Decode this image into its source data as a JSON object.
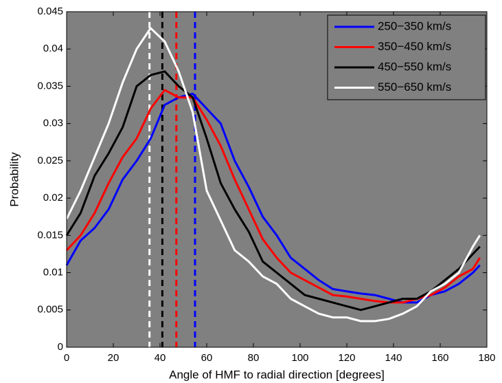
{
  "chart_data": {
    "type": "line",
    "x_label": "Angle of HMF to radial direction [degrees]",
    "y_label": "Probability",
    "x": [
      0,
      6,
      12,
      18,
      24,
      30,
      36,
      42,
      48,
      54,
      60,
      66,
      72,
      78,
      84,
      90,
      96,
      102,
      108,
      114,
      120,
      126,
      132,
      138,
      144,
      150,
      156,
      162,
      168,
      174,
      177
    ],
    "series": [
      {
        "name": "250−350 km/s",
        "color": "#0000ff",
        "vline": 55,
        "values": [
          0.011,
          0.0143,
          0.016,
          0.0185,
          0.0225,
          0.025,
          0.028,
          0.0325,
          0.0335,
          0.034,
          0.032,
          0.03,
          0.025,
          0.0215,
          0.0175,
          0.015,
          0.012,
          0.0105,
          0.009,
          0.0078,
          0.0075,
          0.0072,
          0.007,
          0.0065,
          0.006,
          0.006,
          0.007,
          0.0075,
          0.0085,
          0.01,
          0.011
        ]
      },
      {
        "name": "350−450 km/s",
        "color": "#ff0000",
        "vline": 47,
        "values": [
          0.013,
          0.015,
          0.018,
          0.022,
          0.0255,
          0.028,
          0.032,
          0.0345,
          0.0335,
          0.0335,
          0.0305,
          0.027,
          0.0225,
          0.0185,
          0.0145,
          0.012,
          0.01,
          0.009,
          0.008,
          0.007,
          0.0068,
          0.0065,
          0.0062,
          0.006,
          0.006,
          0.0065,
          0.007,
          0.008,
          0.0095,
          0.0105,
          0.012
        ]
      },
      {
        "name": "450−550 km/s",
        "color": "#000000",
        "vline": 41,
        "values": [
          0.015,
          0.018,
          0.023,
          0.026,
          0.0295,
          0.035,
          0.0365,
          0.037,
          0.035,
          0.0335,
          0.028,
          0.022,
          0.0185,
          0.0155,
          0.0115,
          0.01,
          0.0085,
          0.007,
          0.0065,
          0.006,
          0.0055,
          0.005,
          0.0055,
          0.006,
          0.0065,
          0.0065,
          0.0075,
          0.009,
          0.0105,
          0.0125,
          0.0135
        ]
      },
      {
        "name": "550−650 km/s",
        "color": "#ffffff",
        "vline": 35.5,
        "values": [
          0.0172,
          0.021,
          0.0255,
          0.03,
          0.0355,
          0.04,
          0.0428,
          0.041,
          0.037,
          0.0315,
          0.021,
          0.017,
          0.013,
          0.0115,
          0.0095,
          0.0085,
          0.0065,
          0.0055,
          0.0045,
          0.004,
          0.004,
          0.0035,
          0.0035,
          0.0038,
          0.0045,
          0.0055,
          0.0075,
          0.0085,
          0.01,
          0.0135,
          0.015
        ]
      }
    ],
    "xlim": [
      0,
      180
    ],
    "xticks": [
      0,
      20,
      40,
      60,
      80,
      100,
      120,
      140,
      160,
      180
    ],
    "ylim": [
      0,
      0.045
    ],
    "yticks": [
      0,
      0.005,
      0.01,
      0.015,
      0.02,
      0.025,
      0.03,
      0.035,
      0.04,
      0.045
    ],
    "background": "#808080",
    "legend": "upper-right",
    "grid": false
  }
}
